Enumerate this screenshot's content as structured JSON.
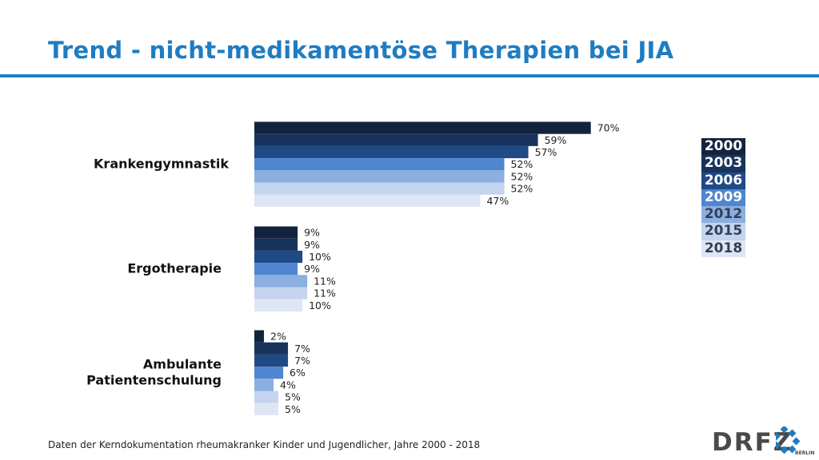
{
  "title": "Trend - nicht-medikamentöse Therapien bei JIA",
  "footer": "Daten der Kerndokumentation rheumakranker Kinder und Jugendlicher, Jahre 2000 - 2018",
  "logo": {
    "text": "DRFZ",
    "subtext": "BERLIN"
  },
  "colors": {
    "accent": "#1f7cc1",
    "series": [
      "#14233d",
      "#18335c",
      "#1f4a86",
      "#4f86cf",
      "#8aafe0",
      "#c4d4ee",
      "#dde6f4"
    ]
  },
  "chart_data": {
    "type": "bar",
    "orientation": "horizontal",
    "categories": [
      [
        "Krankengymnastik"
      ],
      [
        "Ergotherapie"
      ],
      [
        "Ambulante",
        "Patientenschulung"
      ]
    ],
    "series": [
      {
        "name": "2000",
        "values": [
          70,
          9,
          2
        ]
      },
      {
        "name": "2003",
        "values": [
          59,
          9,
          7
        ]
      },
      {
        "name": "2006",
        "values": [
          57,
          10,
          7
        ]
      },
      {
        "name": "2009",
        "values": [
          52,
          9,
          6
        ]
      },
      {
        "name": "2012",
        "values": [
          52,
          11,
          4
        ]
      },
      {
        "name": "2015",
        "values": [
          52,
          11,
          5
        ]
      },
      {
        "name": "2018",
        "values": [
          47,
          10,
          5
        ]
      }
    ],
    "value_suffix": "%",
    "legend_position": "right",
    "grid": false
  }
}
